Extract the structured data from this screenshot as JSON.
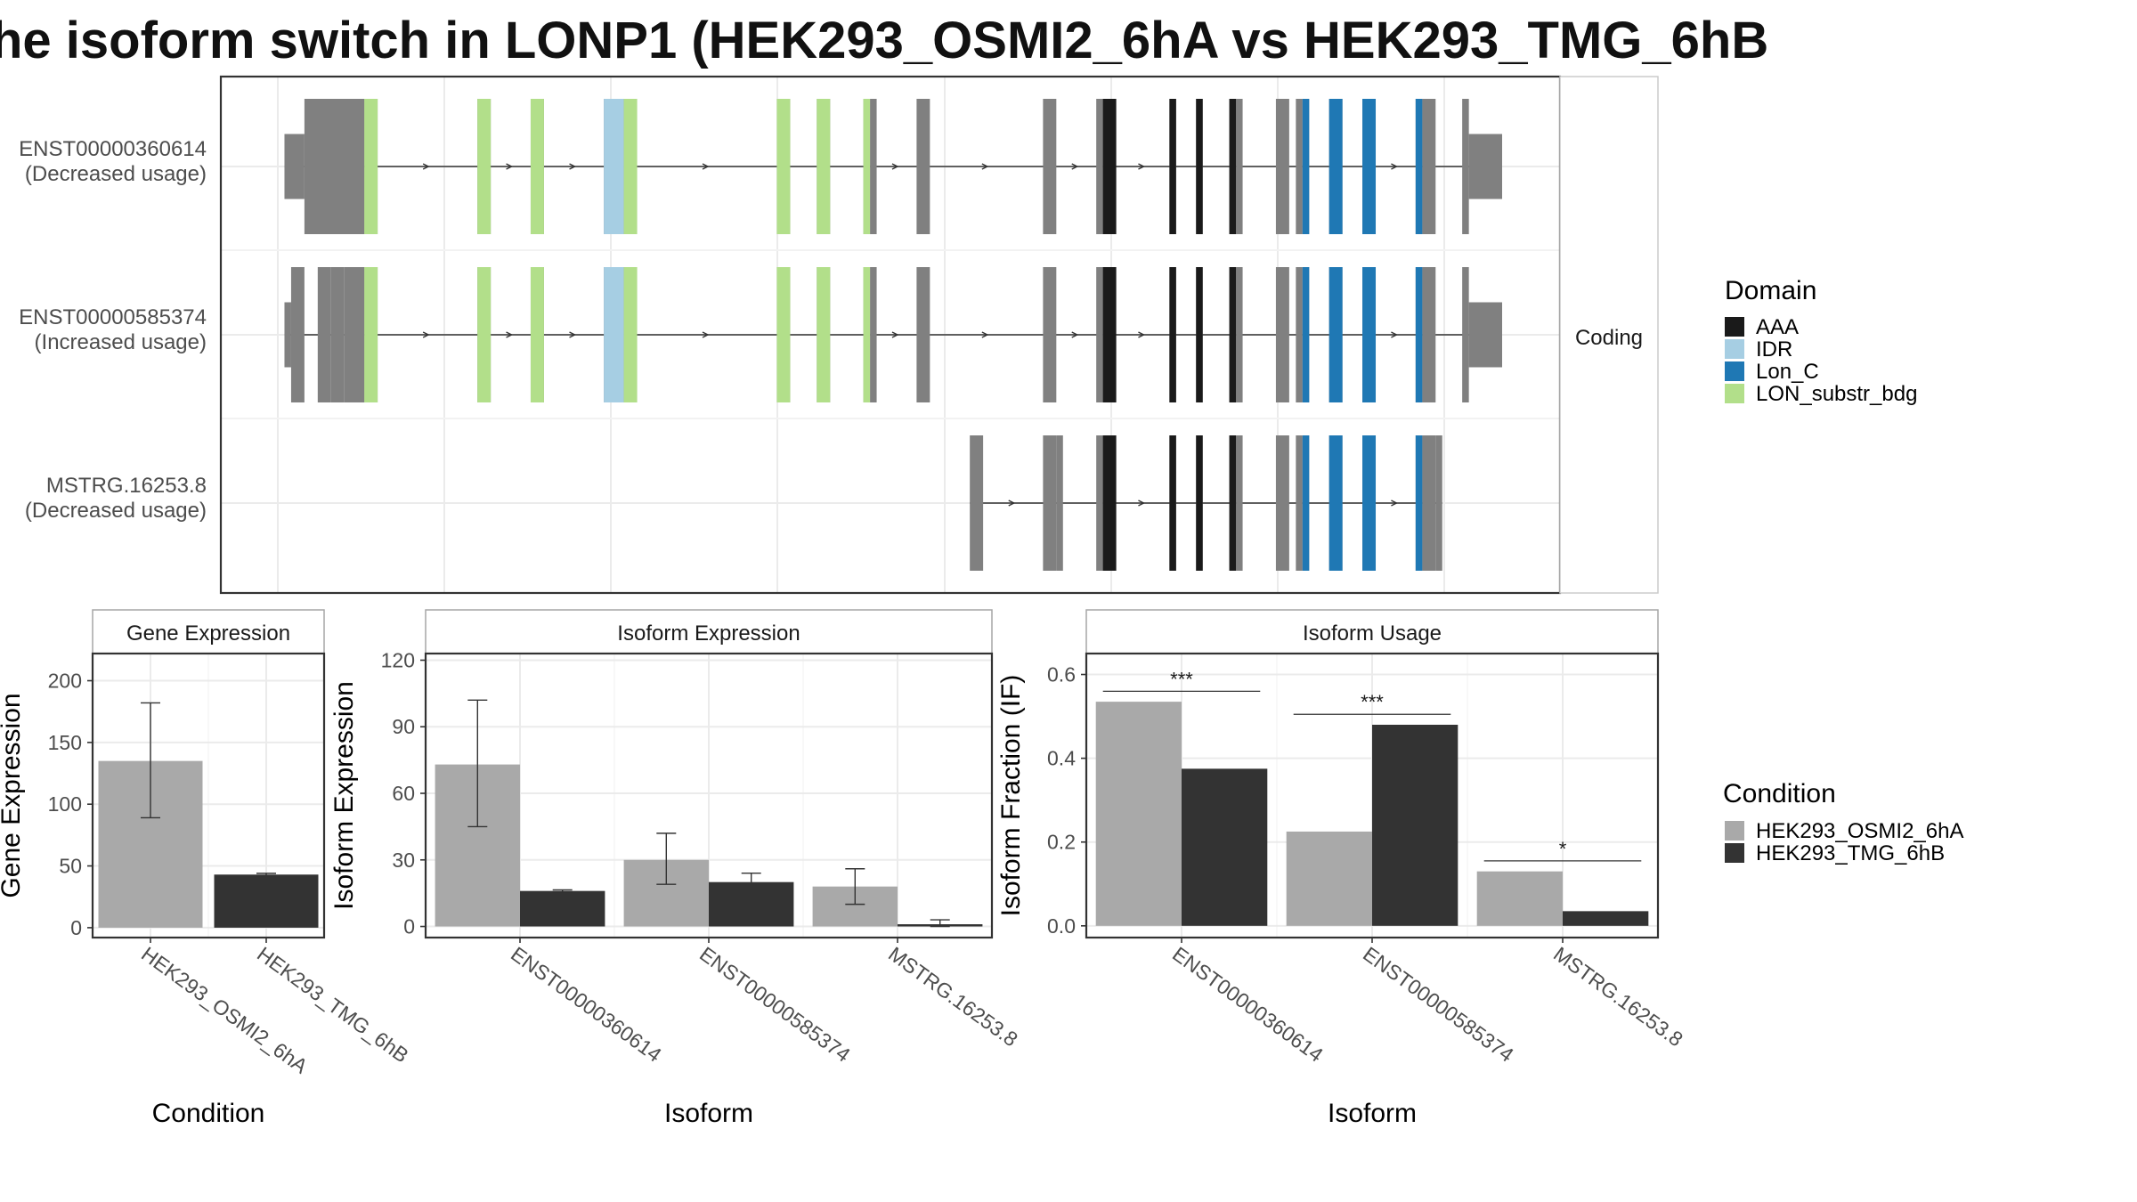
{
  "title": "he isoform switch in LONP1 (HEK293_OSMI2_6hA vs HEK293_TMG_6hB",
  "colors": {
    "exon": "#808080",
    "AAA": "#1a1a1a",
    "IDR": "#a6cee3",
    "Lon_C": "#1f78b4",
    "LON_substr_bdg": "#b2df8a",
    "cond1": "#a9a9a9",
    "cond2": "#333333"
  },
  "chart_data": [
    {
      "type": "gene-structure",
      "strip_label": "Coding",
      "transcripts": [
        {
          "name": "ENST00000360614",
          "usage": "(Decreased usage)",
          "exons": [
            [
              1,
              4
            ],
            [
              4,
              13
            ],
            [
              13,
              15
            ],
            [
              30,
              32
            ],
            [
              38,
              40
            ],
            [
              49,
              52
            ],
            [
              52,
              54
            ],
            [
              75,
              77
            ],
            [
              81,
              83
            ],
            [
              88,
              89
            ],
            [
              89,
              90
            ],
            [
              96,
              98
            ],
            [
              115,
              117
            ],
            [
              123,
              124
            ],
            [
              124,
              126
            ],
            [
              134,
              135
            ],
            [
              138,
              139
            ],
            [
              143,
              144
            ],
            [
              144,
              145
            ],
            [
              150,
              152
            ],
            [
              153,
              154
            ],
            [
              154,
              155
            ],
            [
              158,
              160
            ],
            [
              163,
              165
            ],
            [
              171,
              172
            ],
            [
              172,
              174
            ],
            [
              178,
              179
            ],
            [
              179,
              184
            ]
          ],
          "domains": [
            [
              13,
              15,
              "LON_substr_bdg"
            ],
            [
              30,
              32,
              "LON_substr_bdg"
            ],
            [
              38,
              40,
              "LON_substr_bdg"
            ],
            [
              49,
              52,
              "IDR"
            ],
            [
              52,
              54,
              "LON_substr_bdg"
            ],
            [
              75,
              77,
              "LON_substr_bdg"
            ],
            [
              81,
              83,
              "LON_substr_bdg"
            ],
            [
              88,
              89,
              "LON_substr_bdg"
            ],
            [
              124,
              126,
              "AAA"
            ],
            [
              134,
              135,
              "AAA"
            ],
            [
              138,
              139,
              "AAA"
            ],
            [
              143,
              144,
              "AAA"
            ],
            [
              154,
              155,
              "Lon_C"
            ],
            [
              158,
              160,
              "Lon_C"
            ],
            [
              163,
              165,
              "Lon_C"
            ],
            [
              171,
              172,
              "Lon_C"
            ]
          ]
        },
        {
          "name": "ENST00000585374",
          "usage": "(Increased usage)",
          "exons": [
            [
              1,
              2
            ],
            [
              2,
              4
            ],
            [
              6,
              8
            ],
            [
              8,
              10
            ],
            [
              10,
              13
            ],
            [
              13,
              15
            ],
            [
              30,
              32
            ],
            [
              38,
              40
            ],
            [
              49,
              52
            ],
            [
              52,
              54
            ],
            [
              75,
              77
            ],
            [
              81,
              83
            ],
            [
              88,
              89
            ],
            [
              89,
              90
            ],
            [
              96,
              98
            ],
            [
              115,
              117
            ],
            [
              123,
              124
            ],
            [
              124,
              126
            ],
            [
              134,
              135
            ],
            [
              138,
              139
            ],
            [
              143,
              144
            ],
            [
              144,
              145
            ],
            [
              150,
              152
            ],
            [
              153,
              154
            ],
            [
              154,
              155
            ],
            [
              158,
              160
            ],
            [
              163,
              165
            ],
            [
              171,
              172
            ],
            [
              172,
              174
            ],
            [
              178,
              179
            ],
            [
              179,
              184
            ]
          ],
          "domains": [
            [
              13,
              15,
              "LON_substr_bdg"
            ],
            [
              30,
              32,
              "LON_substr_bdg"
            ],
            [
              38,
              40,
              "LON_substr_bdg"
            ],
            [
              49,
              52,
              "IDR"
            ],
            [
              52,
              54,
              "LON_substr_bdg"
            ],
            [
              75,
              77,
              "LON_substr_bdg"
            ],
            [
              81,
              83,
              "LON_substr_bdg"
            ],
            [
              88,
              89,
              "LON_substr_bdg"
            ],
            [
              124,
              126,
              "AAA"
            ],
            [
              134,
              135,
              "AAA"
            ],
            [
              138,
              139,
              "AAA"
            ],
            [
              143,
              144,
              "AAA"
            ],
            [
              154,
              155,
              "Lon_C"
            ],
            [
              158,
              160,
              "Lon_C"
            ],
            [
              163,
              165,
              "Lon_C"
            ],
            [
              171,
              172,
              "Lon_C"
            ]
          ]
        },
        {
          "name": "MSTRG.16253.8",
          "usage": "(Decreased usage)",
          "exons": [
            [
              104,
              106
            ],
            [
              115,
              117
            ],
            [
              117,
              118
            ],
            [
              123,
              124
            ],
            [
              124,
              126
            ],
            [
              134,
              135
            ],
            [
              138,
              139
            ],
            [
              143,
              144
            ],
            [
              144,
              145
            ],
            [
              150,
              152
            ],
            [
              153,
              154
            ],
            [
              154,
              155
            ],
            [
              158,
              160
            ],
            [
              163,
              165
            ],
            [
              171,
              172
            ],
            [
              172,
              174
            ],
            [
              174,
              175
            ]
          ],
          "domains": [
            [
              124,
              126,
              "AAA"
            ],
            [
              134,
              135,
              "AAA"
            ],
            [
              138,
              139,
              "AAA"
            ],
            [
              143,
              144,
              "AAA"
            ],
            [
              154,
              155,
              "Lon_C"
            ],
            [
              158,
              160,
              "Lon_C"
            ],
            [
              163,
              165,
              "Lon_C"
            ],
            [
              171,
              172,
              "Lon_C"
            ]
          ]
        }
      ],
      "legend": {
        "title": "Domain",
        "items": [
          "AAA",
          "IDR",
          "Lon_C",
          "LON_substr_bdg"
        ]
      }
    },
    {
      "type": "bar",
      "panel_title": "Gene Expression",
      "xlabel": "Condition",
      "ylabel": "Gene Expression",
      "categories": [
        "HEK293_OSMI2_6hA",
        "HEK293_TMG_6hB"
      ],
      "values": [
        135,
        43
      ],
      "errors": [
        [
          89,
          182
        ],
        [
          42,
          44
        ]
      ],
      "yticks": [
        0,
        50,
        100,
        150,
        200
      ],
      "ylim": [
        -8,
        222
      ]
    },
    {
      "type": "bar",
      "panel_title": "Isoform Expression",
      "xlabel": "Isoform",
      "ylabel": "Isoform Expression",
      "categories": [
        "ENST00000360614",
        "ENST00000585374",
        "MSTRG.16253.8"
      ],
      "series": [
        {
          "name": "HEK293_OSMI2_6hA",
          "values": [
            73,
            30,
            18
          ],
          "errors": [
            [
              45,
              102
            ],
            [
              19,
              42
            ],
            [
              10,
              26
            ]
          ]
        },
        {
          "name": "HEK293_TMG_6hB",
          "values": [
            16,
            20,
            1
          ],
          "errors": [
            [
              15.5,
              16.5
            ],
            [
              17,
              24
            ],
            [
              0,
              3
            ]
          ]
        }
      ],
      "yticks": [
        0,
        30,
        60,
        90,
        120
      ],
      "ylim": [
        -5,
        123
      ]
    },
    {
      "type": "bar",
      "panel_title": "Isoform Usage",
      "xlabel": "Isoform",
      "ylabel": "Isoform Fraction (IF)",
      "categories": [
        "ENST00000360614",
        "ENST00000585374",
        "MSTRG.16253.8"
      ],
      "series": [
        {
          "name": "HEK293_OSMI2_6hA",
          "values": [
            0.535,
            0.225,
            0.13
          ]
        },
        {
          "name": "HEK293_TMG_6hB",
          "values": [
            0.375,
            0.48,
            0.035
          ]
        }
      ],
      "significance": [
        {
          "label": "***",
          "y": 0.56
        },
        {
          "label": "***",
          "y": 0.505
        },
        {
          "label": "*",
          "y": 0.155
        }
      ],
      "yticks": [
        0.0,
        0.2,
        0.4,
        0.6
      ],
      "ylim": [
        -0.028,
        0.65
      ]
    }
  ],
  "condition_legend": {
    "title": "Condition",
    "items": [
      "HEK293_OSMI2_6hA",
      "HEK293_TMG_6hB"
    ]
  }
}
